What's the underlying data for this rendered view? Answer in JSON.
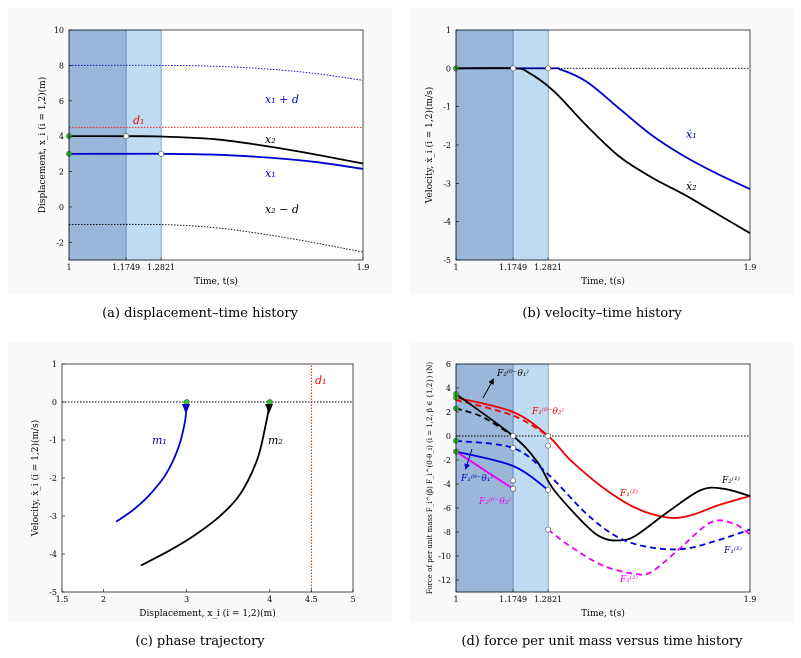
{
  "captions": {
    "a": "(a)  displacement–time history",
    "b": "(b)  velocity–time history",
    "c": "(c)  phase trajectory",
    "d": "(d)  force per unit mass versus time history"
  },
  "chart_data": [
    {
      "id": "a",
      "type": "line",
      "title": "",
      "xlabel": "Time, t(s)",
      "ylabel": "Displacement, x_i (i = 1,2)(m)",
      "xlim": [
        1,
        1.9
      ],
      "ylim": [
        -3,
        10
      ],
      "xticks": [
        1,
        1.1749,
        1.2821,
        1.9
      ],
      "xticklabels": [
        "1",
        "1.1749",
        "1.2821",
        "1.9"
      ],
      "yticks": [
        -2,
        0,
        2,
        4,
        6,
        8,
        10
      ],
      "yticklabels": [
        "-2",
        "0",
        "2",
        "4",
        "6",
        "8",
        "10"
      ],
      "shaded_regions": [
        {
          "from": 1,
          "to": 1.1749,
          "color": "#9ab6d8"
        },
        {
          "from": 1.1749,
          "to": 1.2821,
          "color": "#bfdcf2"
        }
      ],
      "series": [
        {
          "name": "x2",
          "label": "x₂",
          "color": "#000000",
          "style": "solid",
          "x": [
            1,
            1.1749,
            1.2821,
            1.45,
            1.6,
            1.75,
            1.9
          ],
          "y": [
            4,
            4,
            3.98,
            3.82,
            3.45,
            2.98,
            2.45
          ]
        },
        {
          "name": "x1",
          "label": "x₁",
          "color": "#0000cc",
          "style": "solid",
          "x": [
            1,
            1.1749,
            1.2821,
            1.45,
            1.6,
            1.75,
            1.9
          ],
          "y": [
            3,
            3,
            3,
            2.95,
            2.8,
            2.55,
            2.15
          ]
        },
        {
          "name": "x1+d",
          "label": "x₁ + d",
          "color": "#0000cc",
          "style": "dotted",
          "x": [
            1,
            1.2821,
            1.45,
            1.6,
            1.75,
            1.9
          ],
          "y": [
            8,
            8,
            7.95,
            7.8,
            7.55,
            7.15
          ]
        },
        {
          "name": "x2-d",
          "label": "x₂ − d",
          "color": "#000000",
          "style": "dotted",
          "x": [
            1,
            1.2821,
            1.45,
            1.6,
            1.75,
            1.9
          ],
          "y": [
            -1,
            -1,
            -1.18,
            -1.55,
            -2.02,
            -2.55
          ]
        },
        {
          "name": "d1",
          "label": "d₁",
          "color": "#ff0000",
          "style": "dotted",
          "x": [
            1,
            1.9
          ],
          "y": [
            4.5,
            4.5
          ]
        }
      ],
      "markers": [
        {
          "x": 1,
          "y": 4,
          "fill": "#22cc22"
        },
        {
          "x": 1,
          "y": 3,
          "fill": "#22cc22"
        },
        {
          "x": 1.1749,
          "y": 4,
          "fill": "#ffffff"
        },
        {
          "x": 1.2821,
          "y": 3,
          "fill": "#ffffff"
        }
      ]
    },
    {
      "id": "b",
      "type": "line",
      "xlabel": "Time, t(s)",
      "ylabel": "Velocity, ẋ_i (i = 1,2)(m/s)",
      "xlim": [
        1,
        1.9
      ],
      "ylim": [
        -5,
        1
      ],
      "xticks": [
        1,
        1.1749,
        1.2821,
        1.9
      ],
      "xticklabels": [
        "1",
        "1.1749",
        "1.2821",
        "1.9"
      ],
      "yticks": [
        -5,
        -4,
        -3,
        -2,
        -1,
        0,
        1
      ],
      "yticklabels": [
        "-5",
        "-4",
        "-3",
        "-2",
        "-1",
        "0",
        "1"
      ],
      "shaded_regions": [
        {
          "from": 1,
          "to": 1.1749,
          "color": "#9ab6d8"
        },
        {
          "from": 1.1749,
          "to": 1.2821,
          "color": "#bfdcf2"
        }
      ],
      "series": [
        {
          "name": "x1dot",
          "label": "ẋ₁",
          "color": "#0000cc",
          "style": "solid",
          "x": [
            1,
            1.2821,
            1.32,
            1.4,
            1.5,
            1.6,
            1.7,
            1.8,
            1.9
          ],
          "y": [
            0,
            0,
            -0.03,
            -0.35,
            -1.05,
            -1.75,
            -2.3,
            -2.75,
            -3.15
          ]
        },
        {
          "name": "x2dot",
          "label": "ẋ₂",
          "color": "#000000",
          "style": "solid",
          "x": [
            1,
            1.1749,
            1.22,
            1.3,
            1.4,
            1.5,
            1.6,
            1.7,
            1.8,
            1.9
          ],
          "y": [
            0,
            0,
            -0.1,
            -0.6,
            -1.5,
            -2.3,
            -2.85,
            -3.3,
            -3.8,
            -4.3
          ]
        },
        {
          "name": "zero",
          "label": "",
          "color": "#000000",
          "style": "dotted",
          "x": [
            1,
            1.9
          ],
          "y": [
            0,
            0
          ]
        }
      ],
      "markers": [
        {
          "x": 1,
          "y": 0,
          "fill": "#22cc22"
        },
        {
          "x": 1.1749,
          "y": 0,
          "fill": "#ffffff"
        },
        {
          "x": 1.2821,
          "y": 0,
          "fill": "#ffffff"
        }
      ]
    },
    {
      "id": "c",
      "type": "line",
      "xlabel": "Displacement, x_i (i = 1,2)(m)",
      "ylabel": "Velocity, ẋ_i (i = 1,2)(m/s)",
      "xlim": [
        1.5,
        5
      ],
      "ylim": [
        -5,
        1
      ],
      "xticks": [
        1.5,
        2,
        3,
        4,
        4.5,
        5
      ],
      "xticklabels": [
        "1.5",
        "2",
        "3",
        "4",
        "4.5",
        "5"
      ],
      "yticks": [
        -5,
        -4,
        -3,
        -2,
        -1,
        0,
        1
      ],
      "yticklabels": [
        "-5",
        "-4",
        "-3",
        "-2",
        "-1",
        "0",
        "1"
      ],
      "series": [
        {
          "name": "m1",
          "label": "m₁",
          "color": "#0000cc",
          "style": "solid",
          "x": [
            3,
            2.98,
            2.9,
            2.75,
            2.55,
            2.35,
            2.15
          ],
          "y": [
            0,
            -0.5,
            -1.2,
            -1.9,
            -2.45,
            -2.85,
            -3.15
          ]
        },
        {
          "name": "m2",
          "label": "m₂",
          "color": "#000000",
          "style": "solid",
          "x": [
            4,
            3.95,
            3.85,
            3.65,
            3.4,
            3.1,
            2.8,
            2.45
          ],
          "y": [
            0,
            -0.6,
            -1.5,
            -2.4,
            -3.0,
            -3.5,
            -3.9,
            -4.3
          ]
        },
        {
          "name": "d1",
          "label": "d₁",
          "color": "#ff0000",
          "style": "dotted",
          "x": [
            4.5,
            4.5
          ],
          "y": [
            -5,
            1
          ]
        },
        {
          "name": "zero",
          "label": "",
          "color": "#000000",
          "style": "dotted",
          "x": [
            1.5,
            5
          ],
          "y": [
            0,
            0
          ]
        }
      ],
      "markers": [
        {
          "x": 3,
          "y": 0,
          "fill": "#22cc22"
        },
        {
          "x": 4,
          "y": 0,
          "fill": "#22cc22"
        }
      ]
    },
    {
      "id": "d",
      "type": "line",
      "xlabel": "Time, t(s)",
      "ylabel": "Force of per unit mass F_i^(β) F_i^(0-θ_i) (i = 1,2, β ∈ {1,2}) (N)",
      "xlim": [
        1,
        1.9
      ],
      "ylim": [
        -13,
        6
      ],
      "xticks": [
        1,
        1.1749,
        1.2821,
        1.9
      ],
      "xticklabels": [
        "1",
        "1.1749",
        "1.2821",
        "1.9"
      ],
      "yticks": [
        -12,
        -10,
        -8,
        -6,
        -4,
        -2,
        0,
        2,
        4,
        6
      ],
      "yticklabels": [
        "-12",
        "-10",
        "-8",
        "-6",
        "-4",
        "-2",
        "0",
        "2",
        "4",
        "6"
      ],
      "shaded_regions": [
        {
          "from": 1,
          "to": 1.1749,
          "color": "#9ab6d8"
        },
        {
          "from": 1.1749,
          "to": 1.2821,
          "color": "#bfdcf2"
        }
      ],
      "series": [
        {
          "name": "F1_2",
          "label": "F₁⁽²⁾",
          "color": "#ee0000",
          "style": "solid",
          "x": [
            1,
            1.1749,
            1.2821,
            1.35,
            1.45,
            1.55,
            1.65,
            1.72,
            1.8,
            1.9
          ],
          "y": [
            3.2,
            2.0,
            0,
            -2.0,
            -4.3,
            -6.0,
            -6.8,
            -6.6,
            -5.8,
            -5.0
          ]
        },
        {
          "name": "F1_0-t2",
          "label": "F₁⁽⁰⁻θ₂⁾",
          "color": "#ee0000",
          "style": "dashed",
          "x": [
            1,
            1.1749,
            1.2821
          ],
          "y": [
            3.0,
            1.7,
            0
          ]
        },
        {
          "name": "F2_1",
          "label": "F₂⁽¹⁾",
          "color": "#000000",
          "style": "solid",
          "x": [
            1,
            1.1749,
            1.25,
            1.3,
            1.4,
            1.45,
            1.5,
            1.55,
            1.65,
            1.75,
            1.82,
            1.9
          ],
          "y": [
            3.5,
            0,
            -2.2,
            -4.5,
            -7.5,
            -8.5,
            -8.7,
            -8.3,
            -6.3,
            -4.5,
            -4.4,
            -5.0
          ]
        },
        {
          "name": "F2_0-t1",
          "label": "F₂⁽⁰⁻θ₁⁾",
          "color": "#000000",
          "style": "dashed",
          "x": [
            1,
            1.08,
            1.1749
          ],
          "y": [
            2.3,
            1.6,
            0
          ]
        },
        {
          "name": "F1_1",
          "label": "F₁⁽¹⁾",
          "color": "#0000dd",
          "style": "dashed",
          "x": [
            1,
            1.1749,
            1.2821,
            1.4,
            1.5,
            1.6,
            1.7,
            1.8,
            1.9
          ],
          "y": [
            -0.4,
            -1.0,
            -3.2,
            -6.5,
            -8.5,
            -9.3,
            -9.4,
            -8.7,
            -7.8
          ]
        },
        {
          "name": "F1_0-t1",
          "label": "F₁⁽⁰⁻θ₁⁾",
          "color": "#0000dd",
          "style": "solid",
          "x": [
            1,
            1.1749,
            1.2821
          ],
          "y": [
            -1.3,
            -2.5,
            -4.5
          ]
        },
        {
          "name": "F2_2",
          "label": "F₂⁽²⁾",
          "color": "#ee00ee",
          "style": "dashed",
          "x": [
            1.2821,
            1.35,
            1.45,
            1.55,
            1.6,
            1.68,
            1.78,
            1.85,
            1.9
          ],
          "y": [
            -7.8,
            -9.2,
            -10.8,
            -11.5,
            -11.3,
            -9.5,
            -7.2,
            -7.3,
            -8.2
          ]
        },
        {
          "name": "F2_0-t2",
          "label": "F₂⁽⁰⁻θ₂⁾",
          "color": "#ee00ee",
          "style": "solid",
          "x": [
            1,
            1.1749
          ],
          "y": [
            -1.3,
            -4.4
          ]
        },
        {
          "name": "zero",
          "label": "",
          "color": "#000000",
          "style": "dotted",
          "x": [
            1,
            1.9
          ],
          "y": [
            0,
            0
          ]
        }
      ],
      "markers": [
        {
          "x": 1,
          "y": 3.5,
          "fill": "#22cc22"
        },
        {
          "x": 1,
          "y": 3.2,
          "fill": "#22cc22"
        },
        {
          "x": 1,
          "y": 2.3,
          "fill": "#22cc22"
        },
        {
          "x": 1,
          "y": -0.4,
          "fill": "#22cc22"
        },
        {
          "x": 1,
          "y": -1.3,
          "fill": "#22cc22"
        },
        {
          "x": 1.1749,
          "y": 0,
          "fill": "#ffffff"
        },
        {
          "x": 1.1749,
          "y": -1.0,
          "fill": "#ffffff"
        },
        {
          "x": 1.1749,
          "y": -3.7,
          "fill": "#ffffff"
        },
        {
          "x": 1.1749,
          "y": -4.4,
          "fill": "#ffffff"
        },
        {
          "x": 1.2821,
          "y": 0,
          "fill": "#ffffff"
        },
        {
          "x": 1.2821,
          "y": -0.8,
          "fill": "#ffffff"
        },
        {
          "x": 1.2821,
          "y": -4.5,
          "fill": "#ffffff"
        },
        {
          "x": 1.2821,
          "y": -7.8,
          "fill": "#ffffff"
        }
      ]
    }
  ]
}
